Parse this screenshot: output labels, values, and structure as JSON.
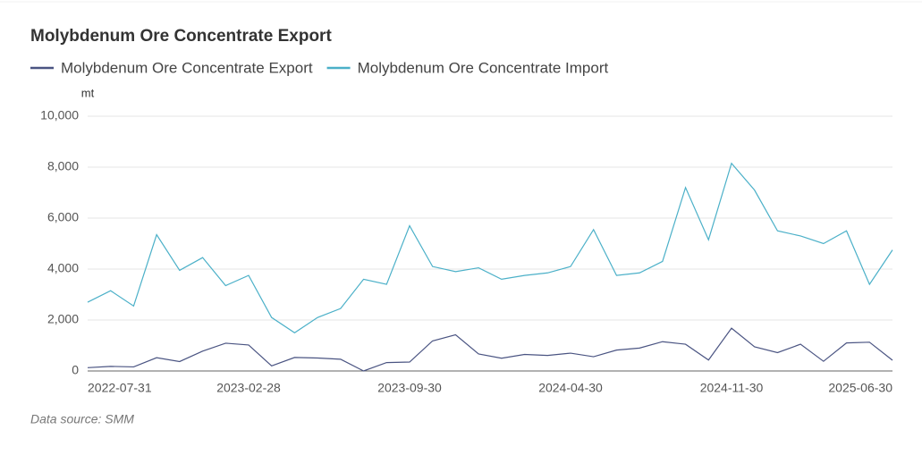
{
  "chart_data": {
    "type": "line",
    "title": "Molybdenum Ore Concentrate Export",
    "y_label": "mt",
    "source": "Data source:  SMM",
    "categories": [
      "2022-07-31",
      null,
      null,
      null,
      null,
      null,
      null,
      "2023-02-28",
      null,
      null,
      null,
      null,
      null,
      null,
      "2023-09-30",
      null,
      null,
      null,
      null,
      null,
      null,
      "2024-04-30",
      null,
      null,
      null,
      null,
      null,
      null,
      "2024-11-30",
      null,
      null,
      null,
      null,
      null,
      null,
      "2025-06-30"
    ],
    "series": [
      {
        "name": "Molybdenum Ore Concentrate Export",
        "color": "#4a5482",
        "values": [
          130,
          180,
          160,
          520,
          370,
          780,
          1090,
          1020,
          200,
          530,
          510,
          460,
          0,
          330,
          350,
          1180,
          1420,
          670,
          500,
          650,
          610,
          700,
          560,
          820,
          900,
          1150,
          1050,
          430,
          1680,
          950,
          720,
          1050,
          380,
          1100,
          1130,
          420
        ]
      },
      {
        "name": "Molybdenum Ore Concentrate Import",
        "color": "#4bb0c8",
        "values": [
          2700,
          3150,
          2550,
          5350,
          3950,
          4450,
          3350,
          3750,
          2100,
          1500,
          2100,
          2450,
          3600,
          3400,
          5700,
          4100,
          3900,
          4050,
          3600,
          3750,
          3850,
          4100,
          5550,
          3750,
          3850,
          4300,
          7200,
          5150,
          8150,
          7100,
          5500,
          5300,
          5000,
          5500,
          3400,
          4750
        ]
      }
    ],
    "ylim": [
      0,
      10000
    ],
    "yticks": [
      0,
      {
        "value": 2000,
        "label": "2,000"
      },
      {
        "value": 4000,
        "label": "4,000"
      },
      {
        "value": 6000,
        "label": "6,000"
      },
      {
        "value": 8000,
        "label": "8,000"
      },
      {
        "value": 10000,
        "label": "10,000"
      }
    ],
    "grid": true
  }
}
